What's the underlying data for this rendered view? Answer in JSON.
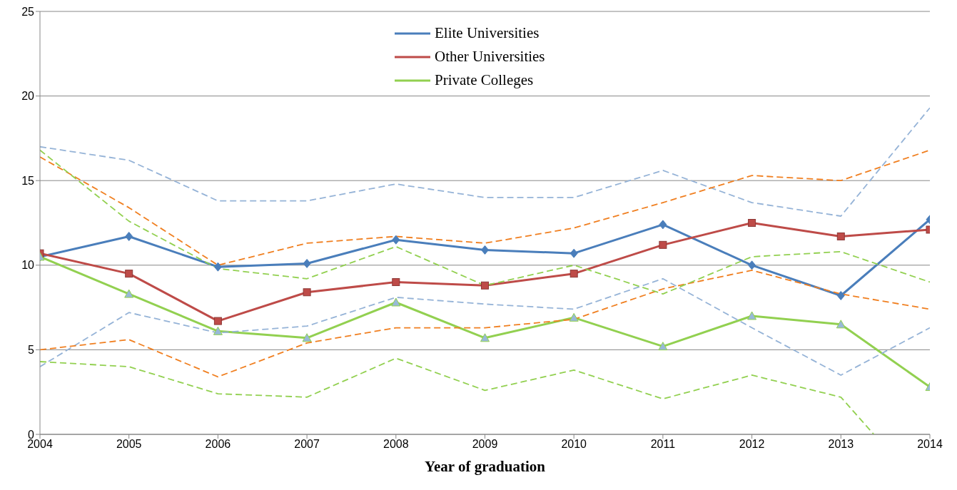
{
  "chart_data": {
    "type": "line",
    "xlabel": "Year of graduation",
    "x": [
      2004,
      2005,
      2006,
      2007,
      2008,
      2009,
      2010,
      2011,
      2012,
      2013,
      2014
    ],
    "xlim": [
      2004,
      2014
    ],
    "xticks": [
      2004,
      2005,
      2006,
      2007,
      2008,
      2009,
      2010,
      2011,
      2012,
      2013,
      2014
    ],
    "ylim": [
      0,
      25
    ],
    "yticks": [
      0,
      5,
      10,
      15,
      20,
      25
    ],
    "grid": "y",
    "legend": "top",
    "series": [
      {
        "name": "Elite Universities",
        "color": "#4a7ebb",
        "marker": "diamond",
        "line_style": "solid",
        "values": [
          10.5,
          11.7,
          9.9,
          10.1,
          11.5,
          10.9,
          10.7,
          12.4,
          10.0,
          8.2,
          12.7
        ]
      },
      {
        "name": "Other Universities",
        "color": "#be4b48",
        "marker": "square",
        "line_style": "solid",
        "values": [
          10.7,
          9.5,
          6.7,
          8.4,
          9.0,
          8.8,
          9.5,
          11.2,
          12.5,
          11.7,
          12.1
        ]
      },
      {
        "name": "Private Colleges",
        "color": "#92d050",
        "marker": "triangle",
        "line_style": "solid",
        "values": [
          10.5,
          8.3,
          6.1,
          5.7,
          7.8,
          5.7,
          6.9,
          5.2,
          7.0,
          6.5,
          2.8
        ]
      },
      {
        "color": "#95b3d7",
        "marker": "none",
        "line_style": "dashed",
        "values": [
          17.0,
          16.2,
          13.8,
          13.8,
          14.8,
          14.0,
          14.0,
          15.6,
          13.7,
          12.9,
          19.3
        ]
      },
      {
        "color": "#95b3d7",
        "marker": "none",
        "line_style": "dashed",
        "values": [
          4.0,
          7.2,
          6.0,
          6.4,
          8.1,
          7.7,
          7.4,
          9.2,
          6.3,
          3.5,
          6.3
        ]
      },
      {
        "color": "#f07f20",
        "marker": "none",
        "line_style": "dashed",
        "values": [
          16.4,
          13.4,
          10.0,
          11.3,
          11.7,
          11.3,
          12.2,
          13.7,
          15.3,
          15.0,
          16.8
        ]
      },
      {
        "color": "#f07f20",
        "marker": "none",
        "line_style": "dashed",
        "values": [
          5.0,
          5.6,
          3.4,
          5.4,
          6.3,
          6.3,
          6.8,
          8.6,
          9.7,
          8.3,
          7.4
        ]
      },
      {
        "color": "#92d050",
        "marker": "none",
        "line_style": "dashed",
        "values": [
          16.8,
          12.6,
          9.8,
          9.2,
          11.1,
          8.8,
          10.0,
          8.3,
          10.5,
          10.8,
          9.0
        ]
      },
      {
        "color": "#92d050",
        "marker": "none",
        "line_style": "dashed",
        "x": [
          2004,
          2005,
          2006,
          2007,
          2008,
          2009,
          2010,
          2011,
          2012,
          2013,
          2013.37
        ],
        "values": [
          4.3,
          4.0,
          2.4,
          2.2,
          4.5,
          2.6,
          3.8,
          2.1,
          3.5,
          2.2,
          0
        ]
      }
    ]
  }
}
